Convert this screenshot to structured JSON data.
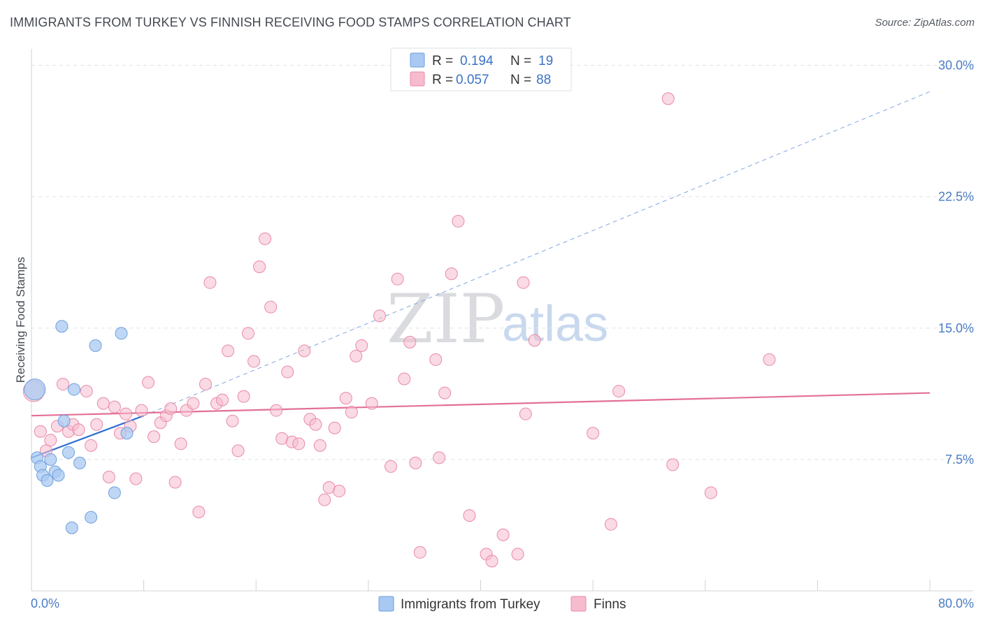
{
  "header": {
    "title": "IMMIGRANTS FROM TURKEY VS FINNISH RECEIVING FOOD STAMPS CORRELATION CHART",
    "source": "Source: ZipAtlas.com"
  },
  "watermark": {
    "zip": "ZIP",
    "atlas": "atlas"
  },
  "legend": {
    "rows": [
      {
        "r_label": "R =",
        "r_value": "0.194",
        "n_label": "N =",
        "n_value": "19",
        "color": "#a9c9f2"
      },
      {
        "r_label": "R =",
        "r_value": "0.057",
        "n_label": "N =",
        "n_value": "88",
        "color": "#f6bccd"
      }
    ]
  },
  "bottom_legend": {
    "items": [
      {
        "label": "Immigrants from Turkey",
        "color": "#a9c9f2"
      },
      {
        "label": "Finns",
        "color": "#f6bccd"
      }
    ]
  },
  "chart_data": {
    "type": "scatter",
    "title": "IMMIGRANTS FROM TURKEY VS FINNISH RECEIVING FOOD STAMPS CORRELATION CHART",
    "xlabel": "",
    "ylabel": "Receiving Food Stamps",
    "xlim": [
      0,
      80
    ],
    "ylim": [
      0,
      30.7
    ],
    "x_tick_labels": [
      "0.0%",
      "80.0%"
    ],
    "y_ticks": [
      7.5,
      15.0,
      22.5,
      30.0
    ],
    "y_tick_labels": [
      "7.5%",
      "15.0%",
      "22.5%",
      "30.0%"
    ],
    "grid": true,
    "series": [
      {
        "name": "Immigrants from Turkey",
        "color": "#a9c9f2",
        "stroke": "#6d9fdf",
        "points": [
          [
            0.3,
            11.5
          ],
          [
            0.5,
            7.6
          ],
          [
            0.8,
            7.1
          ],
          [
            1.0,
            6.6
          ],
          [
            1.4,
            6.3
          ],
          [
            1.7,
            7.5
          ],
          [
            2.1,
            6.8
          ],
          [
            2.4,
            6.6
          ],
          [
            2.7,
            15.1
          ],
          [
            2.9,
            9.7
          ],
          [
            3.3,
            7.9
          ],
          [
            3.6,
            3.6
          ],
          [
            3.8,
            11.5
          ],
          [
            4.3,
            7.3
          ],
          [
            5.7,
            14.0
          ],
          [
            5.3,
            4.2
          ],
          [
            7.4,
            5.6
          ],
          [
            8.0,
            14.7
          ],
          [
            8.5,
            9.0
          ]
        ],
        "trend": {
          "x0": 0,
          "y0": 7.6,
          "x1": 10.0,
          "y1": 10.0,
          "dash_to_x": 80,
          "dash_to_y": 28.5
        }
      },
      {
        "name": "Finns",
        "color": "#f6bccd",
        "stroke": "#e98aa8",
        "points": [
          [
            0.2,
            11.4
          ],
          [
            0.8,
            9.1
          ],
          [
            1.3,
            8.0
          ],
          [
            1.7,
            8.6
          ],
          [
            2.3,
            9.4
          ],
          [
            2.8,
            11.8
          ],
          [
            3.3,
            9.1
          ],
          [
            3.7,
            9.5
          ],
          [
            4.2,
            9.2
          ],
          [
            4.9,
            11.4
          ],
          [
            5.3,
            8.3
          ],
          [
            5.8,
            9.5
          ],
          [
            6.4,
            10.7
          ],
          [
            6.9,
            6.5
          ],
          [
            7.4,
            10.5
          ],
          [
            7.9,
            9.0
          ],
          [
            8.4,
            10.1
          ],
          [
            8.8,
            9.4
          ],
          [
            9.3,
            6.4
          ],
          [
            9.8,
            10.3
          ],
          [
            10.4,
            11.9
          ],
          [
            10.9,
            8.8
          ],
          [
            11.5,
            9.6
          ],
          [
            12.0,
            10.0
          ],
          [
            12.4,
            10.4
          ],
          [
            12.8,
            6.2
          ],
          [
            13.3,
            8.4
          ],
          [
            13.8,
            10.3
          ],
          [
            14.4,
            10.7
          ],
          [
            14.9,
            4.5
          ],
          [
            15.5,
            11.8
          ],
          [
            15.9,
            17.6
          ],
          [
            16.5,
            10.7
          ],
          [
            17.0,
            10.9
          ],
          [
            17.5,
            13.7
          ],
          [
            17.9,
            9.7
          ],
          [
            18.4,
            8.0
          ],
          [
            18.9,
            11.1
          ],
          [
            19.3,
            14.7
          ],
          [
            19.8,
            13.1
          ],
          [
            20.3,
            18.5
          ],
          [
            20.8,
            20.1
          ],
          [
            21.3,
            16.2
          ],
          [
            21.8,
            10.3
          ],
          [
            22.3,
            8.7
          ],
          [
            22.8,
            12.5
          ],
          [
            23.2,
            8.5
          ],
          [
            23.8,
            8.4
          ],
          [
            24.3,
            13.7
          ],
          [
            24.8,
            9.8
          ],
          [
            25.3,
            9.5
          ],
          [
            25.7,
            8.3
          ],
          [
            26.1,
            5.2
          ],
          [
            26.5,
            5.9
          ],
          [
            27.0,
            9.3
          ],
          [
            27.4,
            5.7
          ],
          [
            28.0,
            11.0
          ],
          [
            28.5,
            10.2
          ],
          [
            28.9,
            13.4
          ],
          [
            29.4,
            14.0
          ],
          [
            30.3,
            10.7
          ],
          [
            31.0,
            15.7
          ],
          [
            32.0,
            7.1
          ],
          [
            32.6,
            17.8
          ],
          [
            33.2,
            12.1
          ],
          [
            33.7,
            14.2
          ],
          [
            34.2,
            7.3
          ],
          [
            34.6,
            2.2
          ],
          [
            36.0,
            13.2
          ],
          [
            36.3,
            7.6
          ],
          [
            36.8,
            11.3
          ],
          [
            37.4,
            18.1
          ],
          [
            38.0,
            21.1
          ],
          [
            39.0,
            4.3
          ],
          [
            40.5,
            2.1
          ],
          [
            41.0,
            1.7
          ],
          [
            42.0,
            3.2
          ],
          [
            43.3,
            2.1
          ],
          [
            43.8,
            17.6
          ],
          [
            44.0,
            10.1
          ],
          [
            44.8,
            14.3
          ],
          [
            50.0,
            9.0
          ],
          [
            51.6,
            3.8
          ],
          [
            52.3,
            11.4
          ],
          [
            56.7,
            28.1
          ],
          [
            57.1,
            7.2
          ],
          [
            60.5,
            5.6
          ],
          [
            65.7,
            13.2
          ]
        ],
        "trend": {
          "x0": 0,
          "y0": 10.0,
          "x1": 80,
          "y1": 11.3
        }
      }
    ]
  }
}
